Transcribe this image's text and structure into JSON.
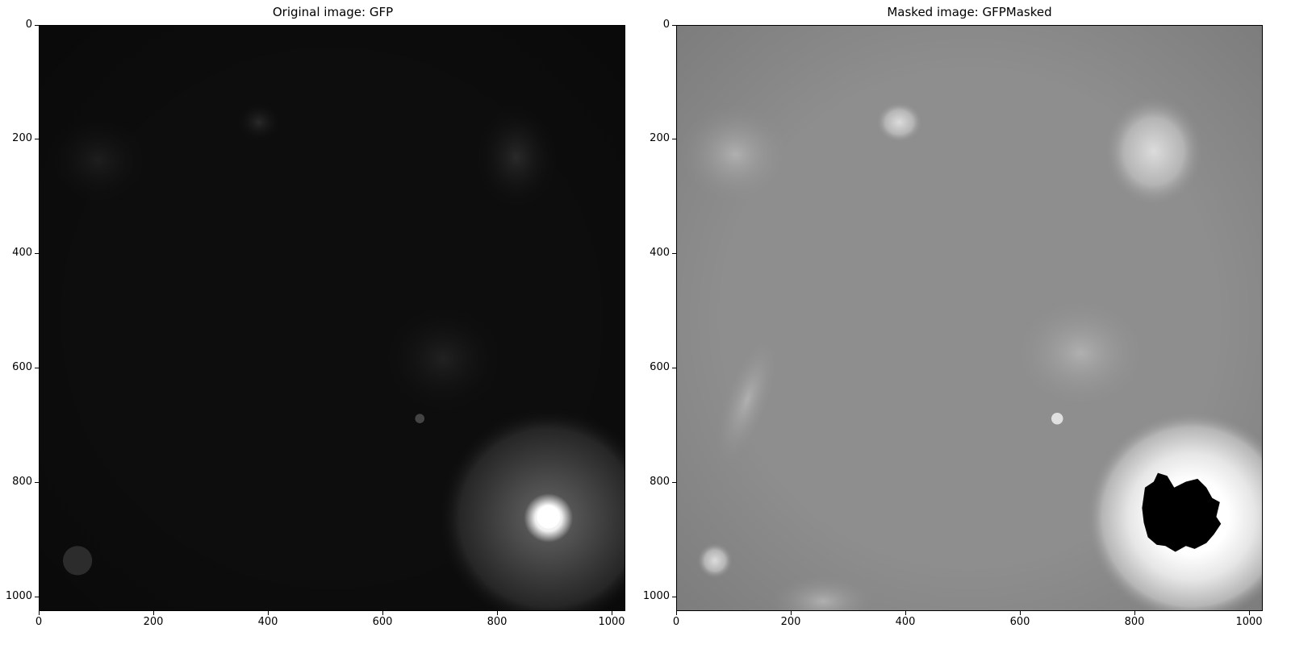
{
  "left": {
    "title": "Original image: GFP",
    "y_ticks": [
      "0",
      "200",
      "400",
      "600",
      "800",
      "1000"
    ],
    "x_ticks": [
      "0",
      "200",
      "400",
      "600",
      "800",
      "1000"
    ]
  },
  "right": {
    "title": "Masked image: GFPMasked",
    "y_ticks": [
      "0",
      "200",
      "400",
      "600",
      "800",
      "1000"
    ],
    "x_ticks": [
      "0",
      "200",
      "400",
      "600",
      "800",
      "1000"
    ]
  },
  "colors": {
    "original_background": "#0c0c0c",
    "masked_background": "#8c8c8c",
    "mask": "#000000"
  }
}
